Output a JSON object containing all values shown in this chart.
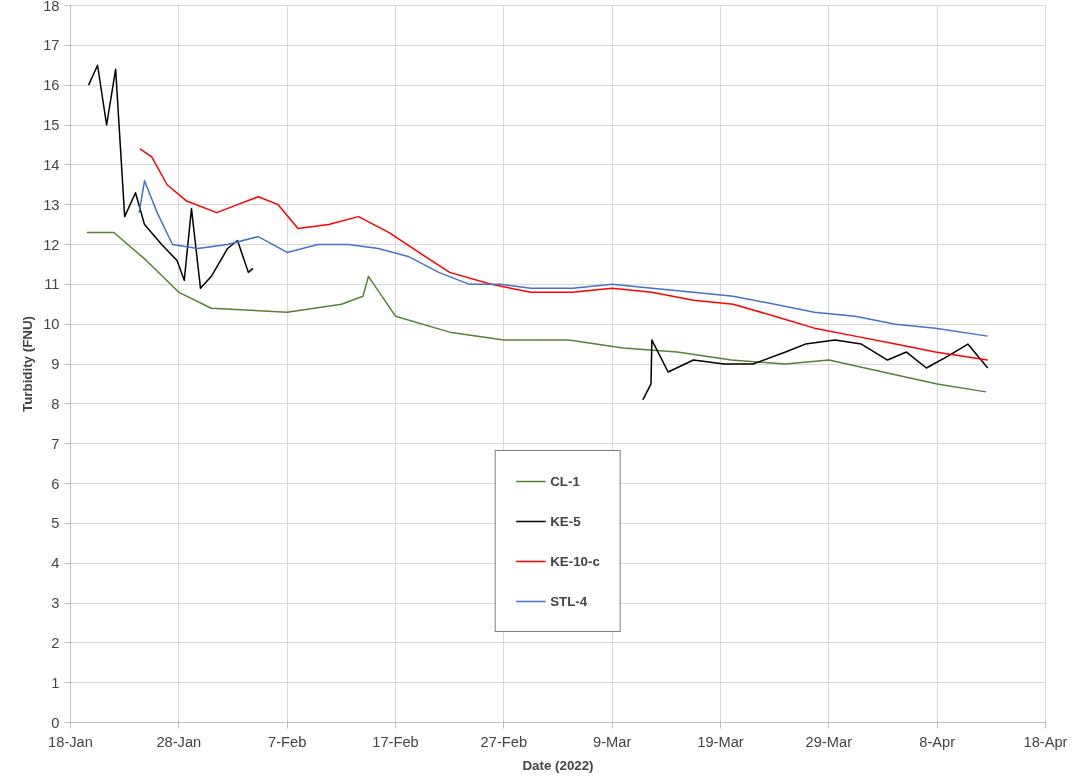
{
  "chart_data": {
    "type": "line",
    "xlabel": "Date (2022)",
    "ylabel": "Turbidity (FNU)",
    "xlim": [
      "2022-01-18",
      "2022-04-18"
    ],
    "xticks": [
      {
        "value": "2022-01-18",
        "label": "18-Jan"
      },
      {
        "value": "2022-01-28",
        "label": "28-Jan"
      },
      {
        "value": "2022-02-07",
        "label": "7-Feb"
      },
      {
        "value": "2022-02-17",
        "label": "17-Feb"
      },
      {
        "value": "2022-02-27",
        "label": "27-Feb"
      },
      {
        "value": "2022-03-09",
        "label": "9-Mar"
      },
      {
        "value": "2022-03-19",
        "label": "19-Mar"
      },
      {
        "value": "2022-03-29",
        "label": "29-Mar"
      },
      {
        "value": "2022-04-08",
        "label": "8-Apr"
      },
      {
        "value": "2022-04-18",
        "label": "18-Apr"
      }
    ],
    "ylim": [
      0,
      18
    ],
    "yticks": [
      0,
      1,
      2,
      3,
      4,
      5,
      6,
      7,
      8,
      9,
      10,
      11,
      12,
      13,
      14,
      15,
      16,
      17,
      18
    ],
    "grid": true,
    "legend": "bottom",
    "marker": "none",
    "line_style": "solid",
    "series": [
      {
        "name": "CL-1",
        "color": "#548235",
        "x": [
          "2022-01-19T12:00",
          "2022-01-22",
          "2022-01-25",
          "2022-01-28",
          "2022-01-31",
          "2022-02-07",
          "2022-02-12",
          "2022-02-14",
          "2022-02-14T12:00",
          "2022-02-17",
          "2022-02-22",
          "2022-02-27",
          "2022-03-05",
          "2022-03-10",
          "2022-03-15",
          "2022-03-20",
          "2022-03-25",
          "2022-03-29",
          "2022-04-03",
          "2022-04-08",
          "2022-04-12T12:00"
        ],
        "values": [
          12.3,
          12.3,
          11.6,
          10.8,
          10.4,
          10.3,
          10.5,
          10.7,
          11.2,
          10.2,
          9.8,
          9.6,
          9.6,
          9.4,
          9.3,
          9.1,
          9.0,
          9.1,
          8.8,
          8.5,
          8.3
        ]
      },
      {
        "name": "KE-5",
        "color": "#000000",
        "x": [
          "2022-01-19T16:00",
          "2022-01-20T12:00",
          "2022-01-21T08:00",
          "2022-01-22T04:00",
          "2022-01-23",
          "2022-01-24",
          "2022-01-24T20:00",
          "2022-01-26T10:00",
          "2022-01-27T20:00",
          "2022-01-28T12:00",
          "2022-01-29T04:00",
          "2022-01-30",
          "2022-01-31",
          "2022-02-01T12:00",
          "2022-02-02T10:00",
          "2022-02-03T10:00",
          "2022-02-03T20:00",
          "2022-03-09T12:00",
          "2022-03-11T20:00",
          "2022-03-12T14:00",
          "2022-03-12T16:00",
          "2022-03-14T04:00",
          "2022-03-16T12:00",
          "2022-03-19T08:00",
          "2022-03-22",
          "2022-03-25",
          "2022-03-26T20:00",
          "2022-03-29T14:00",
          "2022-04-01",
          "2022-04-03T10:00",
          "2022-04-05T04:00",
          "2022-04-07",
          "2022-04-09",
          "2022-04-10T20:00",
          "2022-04-12T16:00"
        ],
        "values": [
          16.0,
          16.5,
          15.0,
          16.4,
          12.7,
          13.3,
          12.5,
          12.0,
          11.6,
          11.1,
          12.9,
          10.9,
          11.2,
          11.9,
          12.1,
          11.3,
          11.4,
          null,
          8.1,
          8.5,
          9.6,
          8.8,
          9.1,
          9.0,
          9.0,
          9.3,
          9.5,
          9.6,
          9.5,
          9.1,
          9.3,
          8.9,
          9.2,
          9.5,
          8.9
        ]
      },
      {
        "name": "KE-10-c",
        "color": "#ff0000",
        "x": [
          "2022-01-24T10:00",
          "2022-01-25T12:00",
          "2022-01-26T22:00",
          "2022-01-28T16:00",
          "2022-01-31T12:00",
          "2022-02-02T10:00",
          "2022-02-04T08:00",
          "2022-02-06T04:00",
          "2022-02-08",
          "2022-02-10T20:00",
          "2022-02-13T14:00",
          "2022-02-16T10:00",
          "2022-02-19T04:00",
          "2022-02-22",
          "2022-02-25T20:00",
          "2022-03-01T12:00",
          "2022-03-05T08:00",
          "2022-03-09",
          "2022-03-12T16:00",
          "2022-03-16T12:00",
          "2022-03-20T04:00",
          "2022-03-24",
          "2022-03-27T16:00",
          "2022-03-31T10:00",
          "2022-04-04T04:00",
          "2022-04-07T20:00",
          "2022-04-12T16:00"
        ],
        "values": [
          14.4,
          14.2,
          13.5,
          13.1,
          12.8,
          13.0,
          13.2,
          13.0,
          12.4,
          12.5,
          12.7,
          12.3,
          11.8,
          11.3,
          11.0,
          10.8,
          10.8,
          10.9,
          10.8,
          10.6,
          10.5,
          10.2,
          9.9,
          9.7,
          9.5,
          9.3,
          9.1
        ]
      },
      {
        "name": "STL-4",
        "color": "#4472c4",
        "x": [
          "2022-01-24T08:00",
          "2022-01-24T20:00",
          "2022-01-26",
          "2022-01-27T10:00",
          "2022-01-29T18:00",
          "2022-02-01T12:00",
          "2022-02-04T08:00",
          "2022-02-07",
          "2022-02-09T20:00",
          "2022-02-12T16:00",
          "2022-02-15T10:00",
          "2022-02-18T04:00",
          "2022-02-21",
          "2022-02-23T20:00",
          "2022-02-26T16:00",
          "2022-03-01T12:00",
          "2022-03-05T08:00",
          "2022-03-09",
          "2022-03-12T16:00",
          "2022-03-16T12:00",
          "2022-03-20T04:00",
          "2022-03-24",
          "2022-03-27T16:00",
          "2022-03-31T10:00",
          "2022-04-04T04:00",
          "2022-04-07T20:00",
          "2022-04-12T16:00"
        ],
        "values": [
          12.8,
          13.6,
          12.8,
          12.0,
          11.9,
          12.0,
          12.2,
          11.8,
          12.0,
          12.0,
          11.9,
          11.7,
          11.3,
          11.0,
          11.0,
          10.9,
          10.9,
          11.0,
          10.9,
          10.8,
          10.7,
          10.5,
          10.3,
          10.2,
          10.0,
          9.9,
          9.7
        ]
      }
    ]
  }
}
